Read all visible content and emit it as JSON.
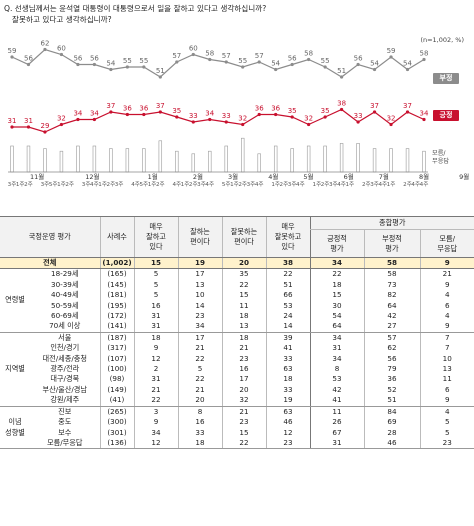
{
  "question_lines": [
    "Q. 선생님께서는 윤석열 대통령이 대통령으로서 일을 잘하고 있다고 생각하십니까?",
    "잘못하고 있다고 생각하십니까?"
  ],
  "sample_note": "(n=1,002, %)",
  "chart_data": {
    "type": "line",
    "x_tick_labels": [
      "3주",
      "1주",
      "2주",
      "3주",
      "5주",
      "1주",
      "2주",
      "3주",
      "4주",
      "1주",
      "2주",
      "3주",
      "4주",
      "5주",
      "1주",
      "2주",
      "4주",
      "1주",
      "2주",
      "3주",
      "4주",
      "5주",
      "1주",
      "2주",
      "3주",
      "4주",
      "1주",
      "2주",
      "3주",
      "4주",
      "1주",
      "2주",
      "3주",
      "4주",
      "1주",
      "2주",
      "3주",
      "4주",
      "1주",
      "2주",
      "4주",
      "4주"
    ],
    "month_labels": [
      {
        "label": "11월",
        "index": 2.5
      },
      {
        "label": "12월",
        "index": 8
      },
      {
        "label": "1월",
        "index": 14
      },
      {
        "label": "2월",
        "index": 18.5
      },
      {
        "label": "3월",
        "index": 22
      },
      {
        "label": "4월",
        "index": 26
      },
      {
        "label": "5월",
        "index": 29.5
      },
      {
        "label": "6월",
        "index": 33.5
      },
      {
        "label": "7월",
        "index": 37
      },
      {
        "label": "8월",
        "index": 41
      },
      {
        "label": "9월",
        "index": 45
      }
    ],
    "series": [
      {
        "name": "부정",
        "color": "#8c8c8c",
        "values": [
          59,
          56,
          62,
          60,
          56,
          56,
          54,
          55,
          55,
          51,
          57,
          60,
          58,
          57,
          55,
          57,
          54,
          56,
          58,
          55,
          51,
          56,
          54,
          59,
          54,
          58
        ]
      },
      {
        "name": "긍정",
        "color": "#c8102e",
        "values": [
          31,
          31,
          29,
          32,
          34,
          34,
          37,
          36,
          36,
          37,
          35,
          33,
          34,
          33,
          32,
          36,
          36,
          35,
          32,
          35,
          38,
          33,
          37,
          32,
          37,
          34
        ]
      }
    ],
    "series_x_index": [
      0,
      2,
      4,
      6,
      8,
      10,
      12,
      14,
      16,
      18,
      20,
      22,
      24,
      26,
      28,
      30,
      32,
      34,
      36,
      38,
      40,
      42,
      44,
      46,
      48,
      50
    ],
    "x_count": 51,
    "bar_legend": "모름/\n무응답",
    "bar_values": [
      10,
      10,
      9,
      8,
      10,
      10,
      9,
      9,
      9,
      12,
      8,
      7,
      8,
      10,
      13,
      7,
      10,
      9,
      10,
      10,
      11,
      11,
      9,
      9,
      9,
      8
    ]
  },
  "table": {
    "header_top": {
      "category": "국정운영 평가",
      "n": "사례수",
      "c1": "매우\n잘하고\n있다",
      "c2": "잘하는\n편이다",
      "c3": "잘못하는\n편이다",
      "c4": "매우\n잘못하고\n있다",
      "summary": "종합평가",
      "s1": "긍정적\n평가",
      "s2": "부정적\n평가",
      "s3": "모름/\n무응답"
    },
    "total": {
      "label": "전체",
      "n": "(1,002)",
      "v": [
        "15",
        "19",
        "20",
        "38",
        "34",
        "58",
        "9"
      ]
    },
    "groups": [
      {
        "name": "연령별",
        "rows": [
          {
            "label": "18-29세",
            "n": "(165)",
            "v": [
              "5",
              "17",
              "35",
              "22",
              "22",
              "58",
              "21"
            ]
          },
          {
            "label": "30-39세",
            "n": "(145)",
            "v": [
              "5",
              "13",
              "22",
              "51",
              "18",
              "73",
              "9"
            ]
          },
          {
            "label": "40-49세",
            "n": "(181)",
            "v": [
              "5",
              "10",
              "15",
              "66",
              "15",
              "82",
              "4"
            ]
          },
          {
            "label": "50-59세",
            "n": "(195)",
            "v": [
              "16",
              "14",
              "11",
              "53",
              "30",
              "64",
              "6"
            ]
          },
          {
            "label": "60-69세",
            "n": "(172)",
            "v": [
              "31",
              "23",
              "18",
              "24",
              "54",
              "42",
              "4"
            ]
          },
          {
            "label": "70세 이상",
            "n": "(141)",
            "v": [
              "31",
              "34",
              "13",
              "14",
              "64",
              "27",
              "9"
            ]
          }
        ]
      },
      {
        "name": "지역별",
        "rows": [
          {
            "label": "서울",
            "n": "(187)",
            "v": [
              "18",
              "17",
              "18",
              "39",
              "34",
              "57",
              "7"
            ]
          },
          {
            "label": "인천/경기",
            "n": "(317)",
            "v": [
              "9",
              "21",
              "21",
              "41",
              "31",
              "62",
              "7"
            ]
          },
          {
            "label": "대전/세종/충청",
            "n": "(107)",
            "v": [
              "12",
              "22",
              "23",
              "33",
              "34",
              "56",
              "10"
            ]
          },
          {
            "label": "광주/전라",
            "n": "(100)",
            "v": [
              "2",
              "5",
              "16",
              "63",
              "8",
              "79",
              "13"
            ]
          },
          {
            "label": "대구/경북",
            "n": "(98)",
            "v": [
              "31",
              "22",
              "17",
              "18",
              "53",
              "36",
              "11"
            ]
          },
          {
            "label": "부산/울산/경남",
            "n": "(149)",
            "v": [
              "21",
              "21",
              "20",
              "33",
              "42",
              "52",
              "6"
            ]
          },
          {
            "label": "강원/제주",
            "n": "(41)",
            "v": [
              "22",
              "20",
              "32",
              "19",
              "41",
              "51",
              "9"
            ]
          }
        ]
      },
      {
        "name": "이념\n성향별",
        "rows": [
          {
            "label": "진보",
            "n": "(265)",
            "v": [
              "3",
              "8",
              "21",
              "63",
              "11",
              "84",
              "4"
            ]
          },
          {
            "label": "중도",
            "n": "(300)",
            "v": [
              "9",
              "16",
              "23",
              "46",
              "26",
              "69",
              "5"
            ]
          },
          {
            "label": "보수",
            "n": "(301)",
            "v": [
              "34",
              "33",
              "15",
              "12",
              "67",
              "28",
              "5"
            ]
          },
          {
            "label": "모름/무응답",
            "n": "(136)",
            "v": [
              "12",
              "18",
              "22",
              "23",
              "31",
              "46",
              "23"
            ]
          }
        ]
      }
    ]
  }
}
